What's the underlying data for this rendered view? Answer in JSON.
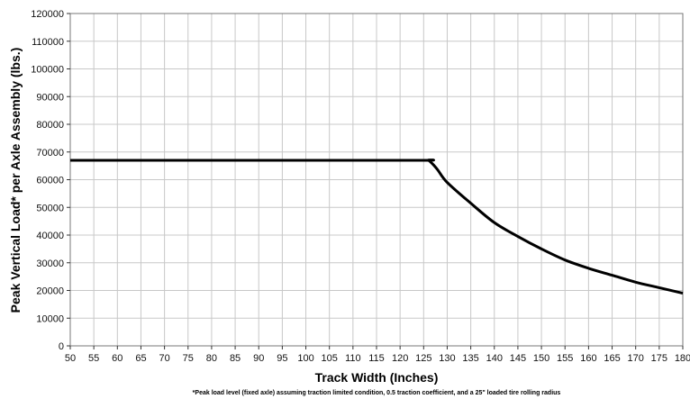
{
  "chart_data": {
    "type": "line",
    "title": "",
    "xlabel": "Track Width (Inches)",
    "ylabel": "Peak Vertical Load* per Axle Assembly (lbs.)",
    "footnote": "*Peak load level (fixed axle) assuming traction limited condition, 0.5 traction coefficient, and a 25\" loaded tire rolling radius",
    "xlim": [
      50,
      180
    ],
    "ylim": [
      0,
      120000
    ],
    "grid": true,
    "x_ticks": [
      "50",
      "55",
      "60",
      "65",
      "70",
      "75",
      "80",
      "85",
      "90",
      "95",
      "100",
      "105",
      "110",
      "115",
      "120",
      "125",
      "130",
      "135",
      "140",
      "145",
      "150",
      "155",
      "160",
      "165",
      "170",
      "175",
      "180"
    ],
    "y_ticks": [
      "0",
      "10000",
      "20000",
      "30000",
      "40000",
      "50000",
      "60000",
      "70000",
      "80000",
      "90000",
      "100000",
      "110000",
      "120000"
    ],
    "series": [
      {
        "color": "#000000",
        "x": [
          50,
          100,
          125,
          126,
          127,
          128,
          130,
          135,
          140,
          145,
          150,
          155,
          160,
          165,
          170,
          175,
          180
        ],
        "values": [
          67000,
          67000,
          67000,
          67000,
          65500,
          63500,
          59000,
          51500,
          44500,
          39500,
          35000,
          31000,
          28000,
          25500,
          23000,
          21000,
          19000
        ]
      }
    ]
  }
}
